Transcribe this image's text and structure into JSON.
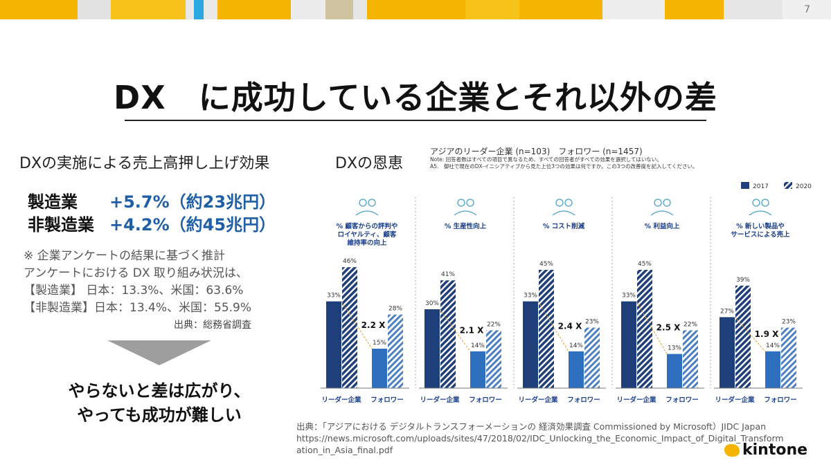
{
  "page_number": "7",
  "colors": {
    "bar_2017": "#1f3f7a",
    "bar_follower_2017": "#2e6fc0",
    "bar_2020_hatch": "#4a7fc4",
    "value_blue": "#1f5fa8",
    "accent_yellow": "#f5b400"
  },
  "title": "DX　に成功している企業とそれ以外の差",
  "left": {
    "subtitle": "DXの実施による売上高押し上げ効果",
    "industries": [
      {
        "name": "製造業",
        "value": "+5.7%（約23兆円）"
      },
      {
        "name": "非製造業",
        "value": "+4.2%（約45兆円）"
      }
    ],
    "notes": [
      "※ 企業アンケートの結果に基づく推計",
      "アンケートにおける DX 取り組み状況は、",
      "【製造業】 日本：13.3%、米国：63.6%",
      "【非製造業】日本：13.4%、米国：55.9%"
    ],
    "source": "出典：総務省調査",
    "conclusion_line1": "やらないと差は広がり、",
    "conclusion_line2": "やっても成功が難しい"
  },
  "benefit_label": "DXの恩恵",
  "survey": {
    "title": "アジアのリーダー企業 (n=103)　フォロワー (n=1457)",
    "note_line1": "Note: 回答者数はすべての項目で異なるため、すべての回答者がすべての効果を選択してはいない。",
    "note_line2": "A5.　御社で現在のDX-イニシアティブから見た上位3つの効果は何ですか。この3つの改善度を記入してください。"
  },
  "chart_data": {
    "type": "bar",
    "legend": [
      "2017",
      "2020"
    ],
    "legend_position": "top-right",
    "groups": [
      "リーダー企業",
      "フォロワー"
    ],
    "ylim": [
      0,
      50
    ],
    "panels": [
      {
        "label_lines": [
          "% 顧客からの評判や",
          "ロイヤルティ、顧客",
          "維持率の向上"
        ],
        "icon": "people-icon",
        "leader": [
          33,
          46
        ],
        "follower": [
          15,
          28
        ],
        "multiplier": "2.2 X"
      },
      {
        "label_lines": [
          "% 生産性向上"
        ],
        "icon": "gears-icon",
        "leader": [
          30,
          41
        ],
        "follower": [
          14,
          22
        ],
        "multiplier": "2.1 X"
      },
      {
        "label_lines": [
          "% コスト削減"
        ],
        "icon": "dollar-down-icon",
        "leader": [
          33,
          45
        ],
        "follower": [
          14,
          23
        ],
        "multiplier": "2.4 X"
      },
      {
        "label_lines": [
          "% 利益向上"
        ],
        "icon": "coins-up-icon",
        "leader": [
          33,
          45
        ],
        "follower": [
          13,
          22
        ],
        "multiplier": "2.5 X"
      },
      {
        "label_lines": [
          "% 新しい製品や",
          "サービスによる売上"
        ],
        "icon": "growth-chart-icon",
        "leader": [
          27,
          39
        ],
        "follower": [
          14,
          23
        ],
        "multiplier": "1.9 X"
      }
    ]
  },
  "footer": {
    "line1": "出典：「アジアにおける デジタルトランスフォーメーションの 経済効果調査 Commissioned by Microsoft）JIDC Japan",
    "line2": "https://news.microsoft.com/uploads/sites/47/2018/02/IDC_Unlocking_the_Economic_Impact_of_Digital_Transform",
    "line3": "ation_in_Asia_final.pdf"
  },
  "logo_text": "kintone"
}
